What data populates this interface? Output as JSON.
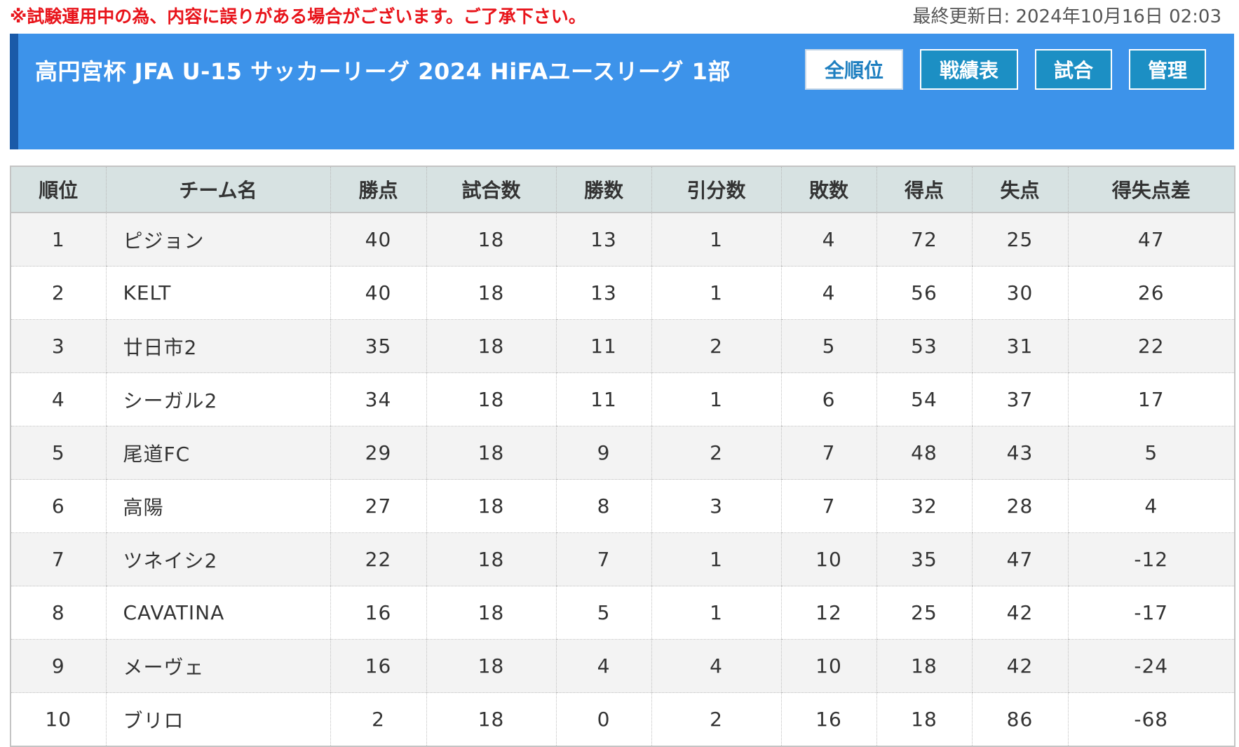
{
  "notice": "※試験運用中の為、内容に誤りがある場合がございます。ご了承下さい。",
  "updated": "最終更新日: 2024年10月16日 02:03",
  "header": {
    "title": "高円宮杯 JFA U-15 サッカーリーグ 2024 HiFAユースリーグ 1部",
    "nav": [
      {
        "label": "全順位",
        "active": true
      },
      {
        "label": "戦績表",
        "active": false
      },
      {
        "label": "試合",
        "active": false
      },
      {
        "label": "管理",
        "active": false
      }
    ]
  },
  "table": {
    "columns": [
      "順位",
      "チーム名",
      "勝点",
      "試合数",
      "勝数",
      "引分数",
      "敗数",
      "得点",
      "失点",
      "得失点差"
    ],
    "rows": [
      [
        "1",
        "ピジョン",
        "40",
        "18",
        "13",
        "1",
        "4",
        "72",
        "25",
        "47"
      ],
      [
        "2",
        "KELT",
        "40",
        "18",
        "13",
        "1",
        "4",
        "56",
        "30",
        "26"
      ],
      [
        "3",
        "廿日市2",
        "35",
        "18",
        "11",
        "2",
        "5",
        "53",
        "31",
        "22"
      ],
      [
        "4",
        "シーガル2",
        "34",
        "18",
        "11",
        "1",
        "6",
        "54",
        "37",
        "17"
      ],
      [
        "5",
        "尾道FC",
        "29",
        "18",
        "9",
        "2",
        "7",
        "48",
        "43",
        "5"
      ],
      [
        "6",
        "高陽",
        "27",
        "18",
        "8",
        "3",
        "7",
        "32",
        "28",
        "4"
      ],
      [
        "7",
        "ツネイシ2",
        "22",
        "18",
        "7",
        "1",
        "10",
        "35",
        "47",
        "-12"
      ],
      [
        "8",
        "CAVATINA",
        "16",
        "18",
        "5",
        "1",
        "12",
        "25",
        "42",
        "-17"
      ],
      [
        "9",
        "メーヴェ",
        "16",
        "18",
        "4",
        "4",
        "10",
        "18",
        "42",
        "-24"
      ],
      [
        "10",
        "ブリロ",
        "2",
        "18",
        "0",
        "2",
        "16",
        "18",
        "86",
        "-68"
      ]
    ]
  }
}
